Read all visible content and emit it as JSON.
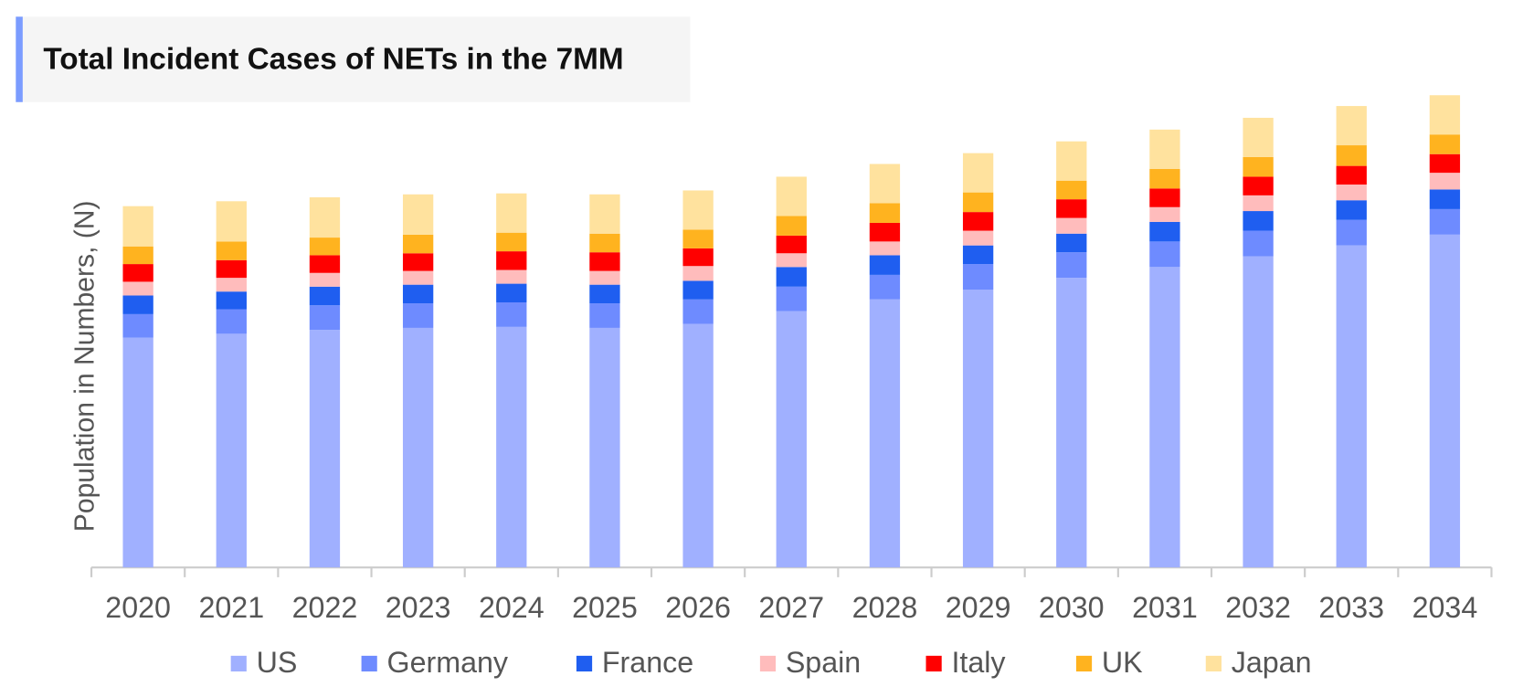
{
  "chart_data": {
    "type": "stacked_bar",
    "title": "Total Incident Cases of NETs in the 7MM",
    "y_label": "Population in Numbers, (N)",
    "categories": [
      "2020",
      "2021",
      "2022",
      "2023",
      "2024",
      "2025",
      "2026",
      "2027",
      "2028",
      "2029",
      "2030",
      "2031",
      "2032",
      "2033",
      "2034"
    ],
    "ylim": [
      0,
      500
    ],
    "series": [
      {
        "name": "US",
        "color": "#a0b0ff",
        "values": [
          234,
          238,
          242,
          244,
          245,
          244,
          248,
          261,
          273,
          283,
          295,
          306,
          317,
          328,
          339
        ]
      },
      {
        "name": "Germany",
        "color": "#6e8bff",
        "values": [
          24,
          25,
          25,
          25,
          25,
          25,
          25,
          25,
          25,
          26,
          26,
          26,
          26,
          26,
          26
        ]
      },
      {
        "name": "France",
        "color": "#1f5ef0",
        "values": [
          19,
          18,
          19,
          19,
          19,
          19,
          19,
          20,
          20,
          19,
          19,
          20,
          20,
          20,
          20
        ]
      },
      {
        "name": "Spain",
        "color": "#ffbcbc",
        "values": [
          14,
          14,
          14,
          14,
          14,
          14,
          15,
          14,
          14,
          15,
          16,
          15,
          16,
          16,
          17
        ]
      },
      {
        "name": "Italy",
        "color": "#ff0000",
        "values": [
          18,
          18,
          18,
          18,
          19,
          19,
          18,
          18,
          19,
          19,
          19,
          19,
          19,
          19,
          19
        ]
      },
      {
        "name": "UK",
        "color": "#ffb31f",
        "values": [
          18,
          19,
          18,
          19,
          19,
          19,
          19,
          20,
          20,
          20,
          19,
          20,
          20,
          21,
          20
        ]
      },
      {
        "name": "Japan",
        "color": "#ffe29e",
        "values": [
          41,
          41,
          41,
          41,
          40,
          40,
          40,
          40,
          40,
          40,
          40,
          40,
          40,
          40,
          40
        ]
      }
    ]
  }
}
